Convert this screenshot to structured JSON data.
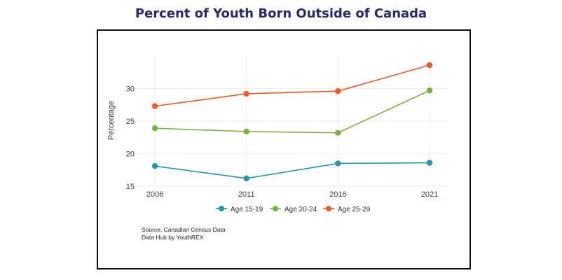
{
  "chart_data": {
    "type": "line",
    "title": "Percent of Youth Born Outside of Canada",
    "ylabel": "Percentage",
    "xlabel": "",
    "categories": [
      "2006",
      "2011",
      "2016",
      "2021"
    ],
    "yticks": [
      15,
      20,
      25,
      30
    ],
    "ylim": [
      15,
      35
    ],
    "grid": true,
    "legend": "bottom",
    "series": [
      {
        "name": "Age 15-19",
        "color": "#2795a8",
        "values": [
          18.1,
          16.2,
          18.5,
          18.6
        ]
      },
      {
        "name": "Age 20-24",
        "color": "#7db243",
        "values": [
          23.9,
          23.4,
          23.2,
          29.7
        ]
      },
      {
        "name": "Age 25-29",
        "color": "#ee5a2b",
        "values": [
          27.3,
          29.2,
          29.6,
          33.6
        ]
      }
    ],
    "source": [
      "Source: Canadian Census Data",
      "Data Hub by YouthREX"
    ]
  }
}
